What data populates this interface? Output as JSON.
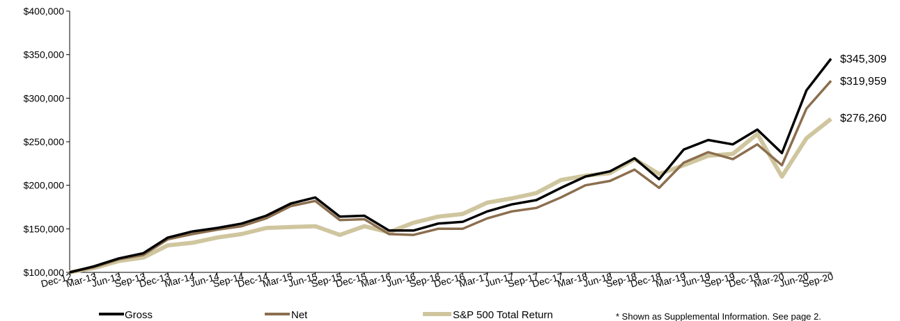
{
  "chart_data": {
    "type": "line",
    "x": [
      "Dec-12",
      "Mar-13",
      "Jun-13",
      "Sep-13",
      "Dec-13",
      "Mar-14",
      "Jun-14",
      "Sep-14",
      "Dec-14",
      "Mar-15",
      "Jun-15",
      "Sep-15",
      "Dec-15",
      "Mar-16",
      "Jun-16",
      "Sep-16",
      "Dec-16",
      "Mar-17",
      "Jun-17",
      "Sep-17",
      "Dec-17",
      "Mar-18",
      "Jun-18",
      "Sep-18",
      "Dec-18",
      "Mar-19",
      "Jun-19",
      "Sep-19",
      "Dec-19",
      "Mar-20",
      "Jun-20",
      "Sep-20"
    ],
    "xtick_labels": [
      "Dec-12",
      "Mar-13",
      "Jun-13",
      "Sep-13",
      "Dec-13",
      "Mar-14",
      "Jun-14",
      "Sep-14",
      "Dec-14",
      "Mar-15",
      "Jun-15",
      "Sep-15",
      "Dec-15",
      "Mar-16",
      "Jun-16",
      "Sep-16",
      "Dec-16",
      "Mar-17",
      "Jun-17",
      "Sep-17",
      "Dec-17",
      "Mar-18",
      "Jun-18",
      "Sep-18",
      "Dec-18",
      "Mar-19",
      "Jun-19",
      "Sep-19",
      "Dec-19",
      "Mar-20",
      "Jun-20",
      "Sep-20"
    ],
    "ylim": [
      100000,
      400000
    ],
    "ytick_labels": [
      "$100,000",
      "$150,000",
      "$200,000",
      "$250,000",
      "$300,000",
      "$350,000",
      "$400,000"
    ],
    "ytick_values": [
      100000,
      150000,
      200000,
      250000,
      300000,
      350000,
      400000
    ],
    "grid": false,
    "legend_position": "bottom",
    "series": [
      {
        "name": "Gross",
        "color": "#000000",
        "end_label": "$345,309",
        "values": [
          100000,
          107000,
          116000,
          122000,
          140000,
          147000,
          151000,
          156000,
          165000,
          179000,
          186000,
          164000,
          165000,
          148000,
          148000,
          156000,
          158000,
          170000,
          178000,
          183000,
          197000,
          210000,
          216000,
          231000,
          207000,
          241000,
          252000,
          247000,
          264000,
          237000,
          309000,
          345309
        ]
      },
      {
        "name": "Net",
        "color": "#8B6E4E",
        "end_label": "$319,959",
        "values": [
          100000,
          106000,
          115000,
          120000,
          138000,
          144000,
          149000,
          153000,
          162000,
          176000,
          182000,
          160000,
          161000,
          144000,
          143000,
          150000,
          150000,
          162000,
          170000,
          174000,
          186000,
          200000,
          205000,
          218000,
          197000,
          226000,
          238000,
          230000,
          247000,
          223000,
          288000,
          319959
        ]
      },
      {
        "name": "S&P 500 Total Return",
        "color": "#CFC69F",
        "end_label": "$276,260",
        "values": [
          100000,
          105000,
          113000,
          117000,
          131000,
          134000,
          140000,
          144000,
          151000,
          152000,
          153000,
          143000,
          153000,
          146000,
          157000,
          164000,
          167000,
          180000,
          185000,
          191000,
          206000,
          211000,
          214000,
          230000,
          213000,
          223000,
          234000,
          236000,
          259000,
          210000,
          254000,
          276260
        ]
      }
    ]
  },
  "footnote": "* Shown as Supplemental Information.  See page 2."
}
